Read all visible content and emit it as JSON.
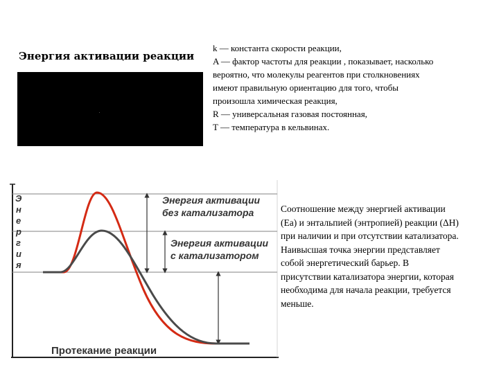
{
  "title": "Энергия активации реакции",
  "definitions": [
    "k — константа скорости реакции,",
    "A — фактор частоты для реакции , показывает, насколько",
    "вероятно, что молекулы реагентов при столкновениях",
    "имеют правильную ориентацию для того, чтобы",
    "произошла химическая реакция,",
    "R — универсальная газовая постоянная,",
    "T — температура в кельвинах."
  ],
  "diagram": {
    "y_axis_letters": [
      "Э",
      "н",
      "е",
      "р",
      "г",
      "и",
      "я"
    ],
    "label_uncatalyzed_line1": "Энергия активации",
    "label_uncatalyzed_line2": "без катализатора",
    "label_catalyzed_line1": "Энергия активации",
    "label_catalyzed_line2": "с катализатором",
    "x_axis_label": "Протекание реакции",
    "colors": {
      "uncatalyzed_curve": "#d42a14",
      "catalyzed_curve": "#4a4a4a",
      "guide_lines": "#9a9a9a",
      "axes": "#222222"
    }
  },
  "description_lines": [
    "Соотношение между энергией активации",
    "(Ea) и энтальпией (энтропией) реакции (ΔH)",
    "при наличии и при отсутствии катализатора.",
    "Наивысшая точка энергии представляет",
    "собой энергетический барьер. В",
    "присутствии катализатора энергии, которая",
    "необходима для начала реакции, требуется",
    "меньше."
  ]
}
